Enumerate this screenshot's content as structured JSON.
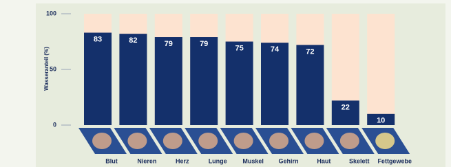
{
  "chart_data": {
    "type": "bar",
    "y_label": "Wasseranteil (%)",
    "categories": [
      "Blut",
      "Nieren",
      "Herz",
      "Lunge",
      "Muskel",
      "Gehirn",
      "Haut",
      "Skelett",
      "Fettgewebe"
    ],
    "values": [
      83,
      82,
      79,
      79,
      75,
      74,
      72,
      22,
      10
    ],
    "color": "#14306b",
    "ylim": [
      0,
      100
    ],
    "yticks": [
      0,
      50,
      100
    ]
  }
}
